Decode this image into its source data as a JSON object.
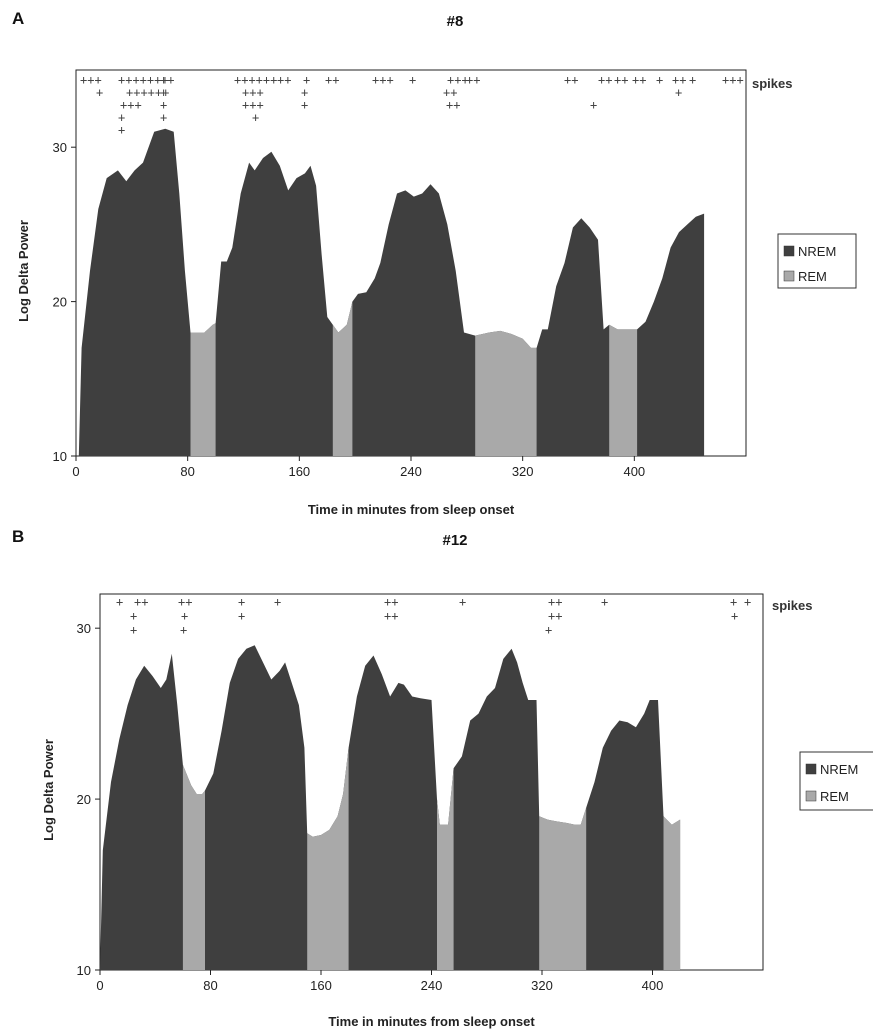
{
  "colors": {
    "nrem": "#3f3f3f",
    "rem": "#a9a9a9",
    "frame": "#222222"
  },
  "chart_data": [
    {
      "type": "area",
      "panel": "A",
      "title": "#8",
      "xlabel": "Time in minutes from sleep onset",
      "ylabel": "Log Delta Power",
      "xlim": [
        0,
        480
      ],
      "ylim": [
        10,
        35
      ],
      "xticks": [
        0,
        80,
        160,
        240,
        320,
        400
      ],
      "yticks": [
        10,
        20,
        30
      ],
      "grid": false,
      "legend": {
        "position": "right",
        "entries": [
          "NREM",
          "REM"
        ]
      },
      "spikes_label": "spikes",
      "series": [
        {
          "points": [
            [
              2,
              10
            ],
            [
              4,
              17
            ],
            [
              10,
              22
            ],
            [
              16,
              26
            ],
            [
              22,
              28
            ],
            [
              30,
              28.5
            ],
            [
              36,
              27.8
            ],
            [
              42,
              28.5
            ],
            [
              48,
              29
            ],
            [
              56,
              31
            ],
            [
              64,
              31.2
            ],
            [
              70,
              31
            ],
            [
              74,
              27
            ],
            [
              78,
              22
            ],
            [
              82,
              18
            ],
            [
              92,
              18
            ],
            [
              98,
              18.5
            ],
            [
              100,
              18.6
            ],
            [
              104,
              22.6
            ],
            [
              108,
              22.6
            ],
            [
              112,
              23.5
            ],
            [
              118,
              27
            ],
            [
              124,
              29
            ],
            [
              128,
              28.5
            ],
            [
              134,
              29.3
            ],
            [
              140,
              29.7
            ],
            [
              146,
              28.8
            ],
            [
              152,
              27.2
            ],
            [
              158,
              28
            ],
            [
              164,
              28.3
            ],
            [
              168,
              28.8
            ],
            [
              172,
              27.5
            ],
            [
              176,
              23
            ],
            [
              180,
              19
            ],
            [
              184,
              18.5
            ],
            [
              188,
              18
            ],
            [
              194,
              18.5
            ],
            [
              198,
              20
            ],
            [
              202,
              20.5
            ],
            [
              208,
              20.6
            ],
            [
              214,
              21.5
            ],
            [
              218,
              22.5
            ],
            [
              224,
              25
            ],
            [
              230,
              27
            ],
            [
              236,
              27.2
            ],
            [
              242,
              26.8
            ],
            [
              248,
              27
            ],
            [
              254,
              27.6
            ],
            [
              260,
              27
            ],
            [
              266,
              25
            ],
            [
              272,
              22
            ],
            [
              278,
              18
            ],
            [
              286,
              17.8
            ],
            [
              296,
              18
            ],
            [
              304,
              18.1
            ],
            [
              312,
              17.9
            ],
            [
              320,
              17.6
            ],
            [
              326,
              17
            ],
            [
              330,
              17
            ],
            [
              334,
              18.2
            ],
            [
              338,
              18.2
            ],
            [
              344,
              21
            ],
            [
              350,
              22.5
            ],
            [
              356,
              24.8
            ],
            [
              362,
              25.4
            ],
            [
              368,
              24.8
            ],
            [
              374,
              24
            ],
            [
              378,
              18.2
            ],
            [
              382,
              18.5
            ],
            [
              388,
              18.2
            ],
            [
              398,
              18.2
            ],
            [
              402,
              18.2
            ],
            [
              408,
              18.7
            ],
            [
              414,
              20
            ],
            [
              420,
              21.5
            ],
            [
              426,
              23.5
            ],
            [
              432,
              24.5
            ],
            [
              438,
              25
            ],
            [
              444,
              25.5
            ],
            [
              450,
              25.7
            ]
          ],
          "rem_intervals": [
            [
              82,
              100
            ],
            [
              184,
              198
            ],
            [
              286,
              330
            ],
            [
              382,
              402
            ]
          ]
        }
      ],
      "spike_rows": [
        [
          "+++",
          "+++++++",
          "++",
          "++++++",
          "++",
          "+",
          "++",
          "+++",
          "+",
          "+++",
          "++",
          "++",
          "++",
          "++",
          "++",
          "+",
          "++",
          "+",
          "+++"
        ],
        [
          "+",
          "++++++",
          "+",
          "+++",
          "+",
          "++",
          "+"
        ],
        [
          "+++",
          "+",
          "+++",
          "+",
          "++",
          "+"
        ],
        [
          "+",
          "+",
          "+"
        ],
        [
          "+"
        ]
      ]
    },
    {
      "type": "area",
      "panel": "B",
      "title": "#12",
      "xlabel": "Time in minutes from sleep onset",
      "ylabel": "Log Delta Power",
      "xlim": [
        0,
        480
      ],
      "ylim": [
        10,
        32
      ],
      "xticks": [
        0,
        80,
        160,
        240,
        320,
        400
      ],
      "yticks": [
        10,
        20,
        30
      ],
      "grid": false,
      "legend": {
        "position": "right",
        "entries": [
          "NREM",
          "REM"
        ]
      },
      "spikes_label": "spikes",
      "series": [
        {
          "points": [
            [
              0,
              10
            ],
            [
              2,
              17
            ],
            [
              8,
              21
            ],
            [
              14,
              23.5
            ],
            [
              20,
              25.5
            ],
            [
              26,
              27
            ],
            [
              32,
              27.8
            ],
            [
              38,
              27.2
            ],
            [
              44,
              26.5
            ],
            [
              48,
              27
            ],
            [
              52,
              28.5
            ],
            [
              56,
              25.5
            ],
            [
              60,
              22
            ],
            [
              66,
              20.8
            ],
            [
              70,
              20.3
            ],
            [
              74,
              20.3
            ],
            [
              76,
              20.5
            ],
            [
              82,
              21.5
            ],
            [
              88,
              24
            ],
            [
              94,
              26.8
            ],
            [
              100,
              28.2
            ],
            [
              106,
              28.8
            ],
            [
              112,
              29
            ],
            [
              118,
              28
            ],
            [
              124,
              27
            ],
            [
              130,
              27.5
            ],
            [
              134,
              28
            ],
            [
              140,
              26.5
            ],
            [
              144,
              25.5
            ],
            [
              148,
              23
            ],
            [
              150,
              18
            ],
            [
              154,
              17.8
            ],
            [
              160,
              17.9
            ],
            [
              166,
              18.2
            ],
            [
              172,
              19
            ],
            [
              176,
              20.3
            ],
            [
              180,
              23
            ],
            [
              186,
              26
            ],
            [
              192,
              27.8
            ],
            [
              198,
              28.4
            ],
            [
              204,
              27.3
            ],
            [
              210,
              26
            ],
            [
              216,
              26.8
            ],
            [
              220,
              26.7
            ],
            [
              226,
              26
            ],
            [
              232,
              25.9
            ],
            [
              240,
              25.8
            ],
            [
              244,
              20
            ],
            [
              246,
              18.5
            ],
            [
              252,
              18.5
            ],
            [
              256,
              21.8
            ],
            [
              262,
              22.5
            ],
            [
              268,
              24.6
            ],
            [
              274,
              25
            ],
            [
              280,
              26
            ],
            [
              286,
              26.5
            ],
            [
              292,
              28.2
            ],
            [
              298,
              28.8
            ],
            [
              302,
              28
            ],
            [
              306,
              26.8
            ],
            [
              310,
              25.8
            ],
            [
              316,
              25.8
            ],
            [
              318,
              19
            ],
            [
              324,
              18.8
            ],
            [
              330,
              18.7
            ],
            [
              338,
              18.6
            ],
            [
              344,
              18.5
            ],
            [
              348,
              18.5
            ],
            [
              352,
              19.5
            ],
            [
              358,
              21
            ],
            [
              364,
              23
            ],
            [
              370,
              24
            ],
            [
              376,
              24.6
            ],
            [
              382,
              24.5
            ],
            [
              388,
              24.2
            ],
            [
              394,
              25
            ],
            [
              398,
              25.8
            ],
            [
              404,
              25.8
            ],
            [
              408,
              19
            ],
            [
              414,
              18.5
            ],
            [
              420,
              18.8
            ]
          ],
          "rem_intervals": [
            [
              60,
              76
            ],
            [
              150,
              180
            ],
            [
              244,
              256
            ],
            [
              318,
              352
            ],
            [
              408,
              420
            ]
          ]
        }
      ],
      "spike_rows": [
        [
          "+",
          "++",
          "++",
          "+",
          "+",
          "++",
          "+",
          "++",
          "+",
          "+",
          "+"
        ],
        [
          "+",
          "+",
          "+",
          "++",
          "++",
          "+"
        ],
        [
          "+",
          "+",
          "+"
        ]
      ]
    }
  ]
}
